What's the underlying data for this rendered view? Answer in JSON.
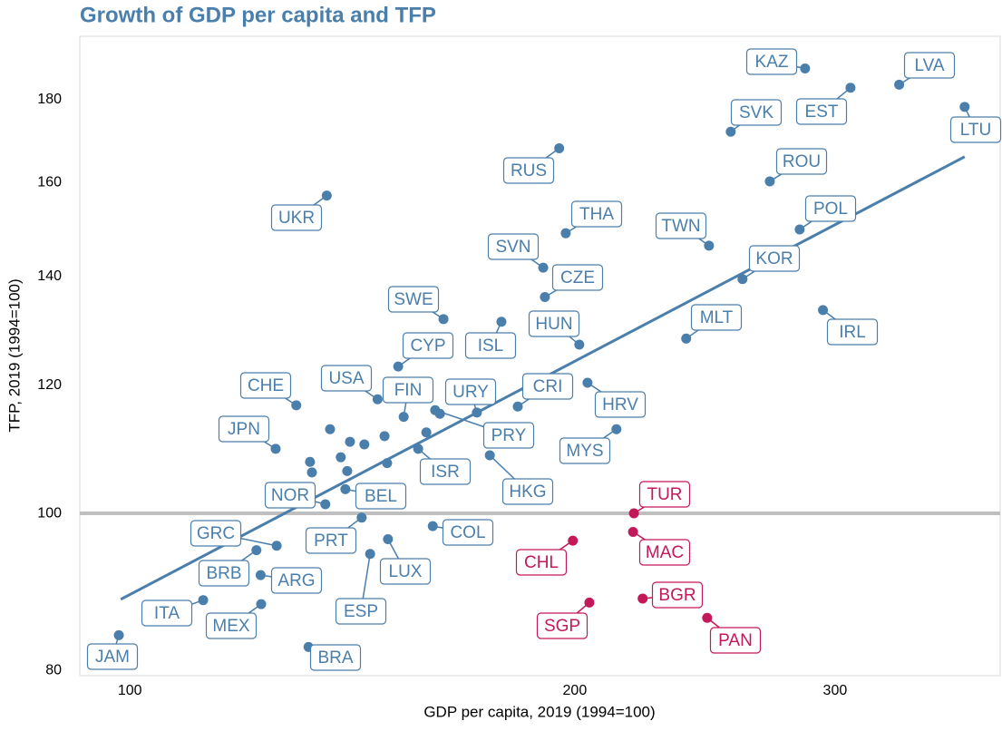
{
  "chart_data": {
    "type": "scatter",
    "title": "Growth of GDP per capita and TFP",
    "xlabel": "GDP per capita, 2019 (1994=100)",
    "ylabel": "TFP, 2019 (1994=100)",
    "xscale": "log",
    "yscale": "log",
    "xlim": [
      92.5,
      388
    ],
    "ylim": [
      79.4,
      197
    ],
    "xticks": [
      100,
      200,
      300
    ],
    "yticks": [
      80,
      100,
      120,
      140,
      160,
      180
    ],
    "hline": 100,
    "series": [
      {
        "color": "#4a7eab",
        "labels": [
          "JAM",
          "ITA",
          "MEX",
          "ARG",
          "BRB",
          "GRC",
          "BRA",
          "ESP",
          "LUX",
          "PRT",
          "COL",
          "NOR",
          "BEL",
          null,
          null,
          null,
          null,
          null,
          null,
          null,
          null,
          null,
          null,
          null,
          "PRY",
          "ISR",
          "HKG",
          "URY",
          "CRI",
          "USA",
          "FIN",
          "CYP",
          "SWE",
          "ISL",
          "CHE",
          "JPN",
          "UKR",
          "HUN",
          "RUS",
          "SVN",
          "THA",
          "CZE",
          "HRV",
          "MYS",
          "MLT",
          "TWN",
          "SVK",
          "KOR",
          "ROU",
          "POL",
          "KAZ",
          "EST",
          "LVA",
          "LTU",
          "IRL"
        ],
        "x": [
          98.3,
          112.1,
          122.7,
          122.6,
          121.8,
          125.7,
          132.1,
          145.4,
          149.5,
          143.5,
          160.3,
          135.6,
          139.9,
          132.8,
          132.4,
          136.6,
          138.9,
          140.9,
          140.3,
          144.1,
          148.7,
          149.3,
          158.7,
          162.1,
          160.9,
          156.7,
          175.2,
          171.7,
          183.0,
          147.1,
          153.2,
          151.9,
          163.0,
          178.4,
          129.6,
          125.5,
          135.9,
          201.4,
          195.2,
          190.4,
          197.2,
          190.9,
          204.0,
          213.4,
          237.9,
          246.5,
          255.0,
          259.7,
          271.0,
          283.9,
          286.3,
          307.3,
          331.5,
          367.1,
          294.4
        ],
        "values": [
          84.1,
          88.4,
          87.9,
          91.6,
          94.9,
          95.5,
          82.7,
          94.4,
          96.4,
          99.4,
          98.2,
          101.3,
          103.5,
          106.0,
          107.6,
          112.7,
          108.3,
          110.7,
          106.2,
          110.3,
          111.6,
          107.4,
          112.2,
          115.2,
          115.8,
          109.6,
          108.6,
          115.4,
          116.4,
          117.6,
          114.7,
          123.2,
          131.8,
          131.3,
          116.6,
          109.6,
          157.1,
          127.1,
          168.0,
          141.8,
          148.9,
          136.0,
          120.4,
          112.7,
          128.2,
          146.3,
          172.0,
          139.5,
          160.3,
          149.7,
          188.2,
          183.1,
          183.9,
          178.2,
          133.5
        ]
      },
      {
        "color": "#c3185a",
        "labels": [
          "TUR",
          "MAC",
          "CHL",
          "BGR",
          "PAN",
          "SGP"
        ],
        "x": [
          219.3,
          219.0,
          199.4,
          222.3,
          245.8,
          204.6
        ],
        "values": [
          100.0,
          97.4,
          96.2,
          88.6,
          86.2,
          88.1
        ]
      }
    ],
    "trend": {
      "color": "#4a7eab",
      "x": [
        98.6,
        367.1
      ],
      "values": [
        88.5,
        166.0
      ]
    }
  }
}
